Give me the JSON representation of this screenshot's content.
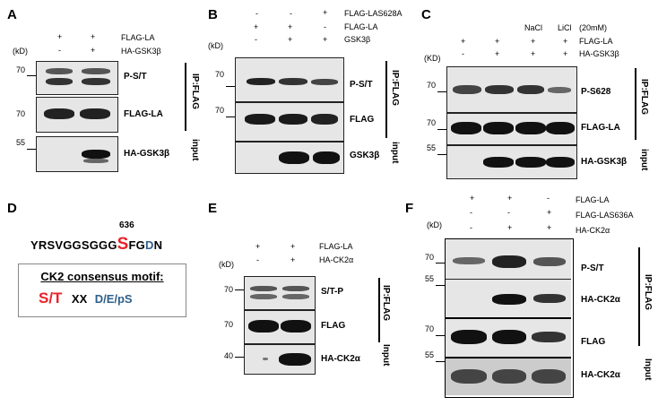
{
  "panels": {
    "A": {
      "letter": "A",
      "rows": [
        {
          "signs": [
            "+",
            "+"
          ],
          "label": "FLAG-LA"
        },
        {
          "signs": [
            "-",
            "+"
          ],
          "label": "HA-GSK3β"
        }
      ],
      "unit": "(kD)",
      "blots": [
        {
          "marker": "70",
          "label": "P-S/T"
        },
        {
          "marker": "70",
          "label": "FLAG-LA"
        },
        {
          "marker": "55",
          "label": "HA-GSK3β"
        }
      ],
      "groups": [
        "IP:FLAG",
        "input"
      ]
    },
    "B": {
      "letter": "B",
      "rows": [
        {
          "signs": [
            "-",
            "-",
            "+"
          ],
          "label": "FLAG-LAS628A"
        },
        {
          "signs": [
            "+",
            "+",
            "-"
          ],
          "label": "FLAG-LA"
        },
        {
          "signs": [
            "-",
            "+",
            "+"
          ],
          "label": "GSK3β"
        }
      ],
      "unit": "(kD)",
      "blots": [
        {
          "marker": "70",
          "label": "P-S/T"
        },
        {
          "marker": "70",
          "label": "FLAG"
        },
        {
          "marker": "",
          "label": "GSK3β"
        }
      ],
      "groups": [
        "IP:FLAG",
        "input"
      ]
    },
    "C": {
      "letter": "C",
      "treatments": [
        "NaCl",
        "LiCl"
      ],
      "conc": "(20mM)",
      "rows": [
        {
          "signs": [
            "+",
            "+",
            "+",
            "+"
          ],
          "label": "FLAG-LA"
        },
        {
          "signs": [
            "-",
            "+",
            "+",
            "+"
          ],
          "label": "HA-GSK3β"
        }
      ],
      "unit": "(KD)",
      "blots": [
        {
          "marker": "70",
          "label": "P-S628"
        },
        {
          "marker": "70",
          "label": "FLAG-LA"
        },
        {
          "marker": "55",
          "label": "HA-GSK3β"
        }
      ],
      "groups": [
        "IP:FLAG",
        "input"
      ]
    },
    "D": {
      "letter": "D",
      "position": "636",
      "seq_pre": "YRSVGGSGGG",
      "seq_site": "S",
      "seq_f": "FG",
      "seq_d": "D",
      "seq_n": "N",
      "motif_title": "CK2 consensus motif:",
      "motif_st": "S/T",
      "motif_xx": "XX",
      "motif_acid": "D/E/pS"
    },
    "E": {
      "letter": "E",
      "rows": [
        {
          "signs": [
            "+",
            "+"
          ],
          "label": "FLAG-LA"
        },
        {
          "signs": [
            "-",
            "+"
          ],
          "label": "HA-CK2α"
        }
      ],
      "unit": "(kD)",
      "blots": [
        {
          "marker": "70",
          "label": "S/T-P"
        },
        {
          "marker": "70",
          "label": "FLAG"
        },
        {
          "marker": "40",
          "label": "HA-CK2α"
        }
      ],
      "groups": [
        "IP:FLAG",
        "Input"
      ]
    },
    "F": {
      "letter": "F",
      "rows": [
        {
          "signs": [
            "+",
            "+",
            "-"
          ],
          "label": "FLAG-LA"
        },
        {
          "signs": [
            "-",
            "-",
            "+"
          ],
          "label": "FLAG-LAS636A"
        },
        {
          "signs": [
            "-",
            "+",
            "+"
          ],
          "label": "HA-CK2α"
        }
      ],
      "unit": "(kD)",
      "blots": [
        {
          "marker": "70",
          "label": "P-S/T"
        },
        {
          "marker": "55",
          "label": "HA-CK2α"
        },
        {
          "marker": "70",
          "label": "FLAG"
        },
        {
          "marker": "55",
          "label": "HA-CK2α"
        }
      ],
      "groups": [
        "IP:FLAG",
        "Input"
      ]
    }
  }
}
